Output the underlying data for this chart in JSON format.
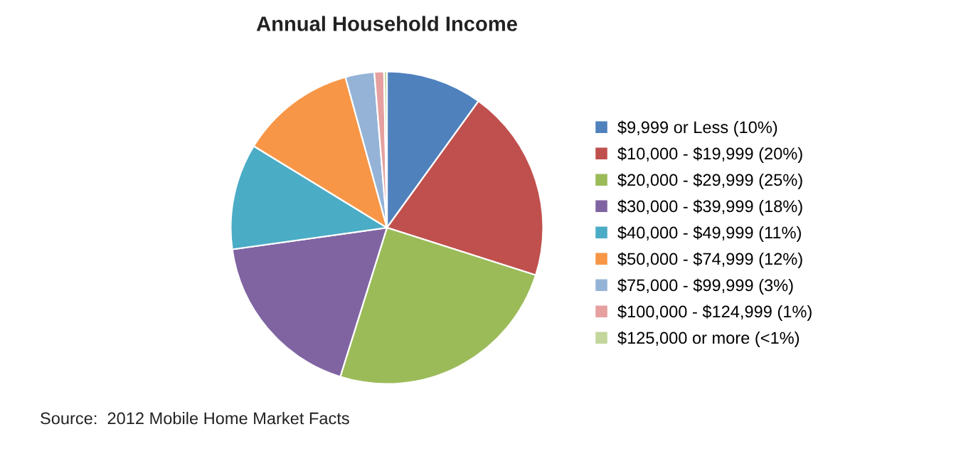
{
  "chart_data": {
    "type": "pie",
    "title": "Annual Household Income",
    "categories": [
      "$9,999 or Less (10%)",
      "$10,000 - $19,999 (20%)",
      "$20,000 - $29,999 (25%)",
      "$30,000 - $39,999 (18%)",
      "$40,000 - $49,999 (11%)",
      "$50,000 - $74,999 (12%)",
      "$75,000 - $99,999 (3%)",
      "$100,000 - $124,999 (1%)",
      "$125,000 or more (<1%)"
    ],
    "values": [
      10,
      20,
      25,
      18,
      11,
      12,
      3,
      1,
      0.3
    ],
    "colors": [
      "#4f81bd",
      "#c0504d",
      "#9bbb59",
      "#8064a2",
      "#4bacc6",
      "#f79646",
      "#95b3d7",
      "#e6a0a0",
      "#c3d69b"
    ],
    "legend": "right",
    "annotations": [
      "Source:  2012 Mobile Home Market Facts"
    ]
  }
}
